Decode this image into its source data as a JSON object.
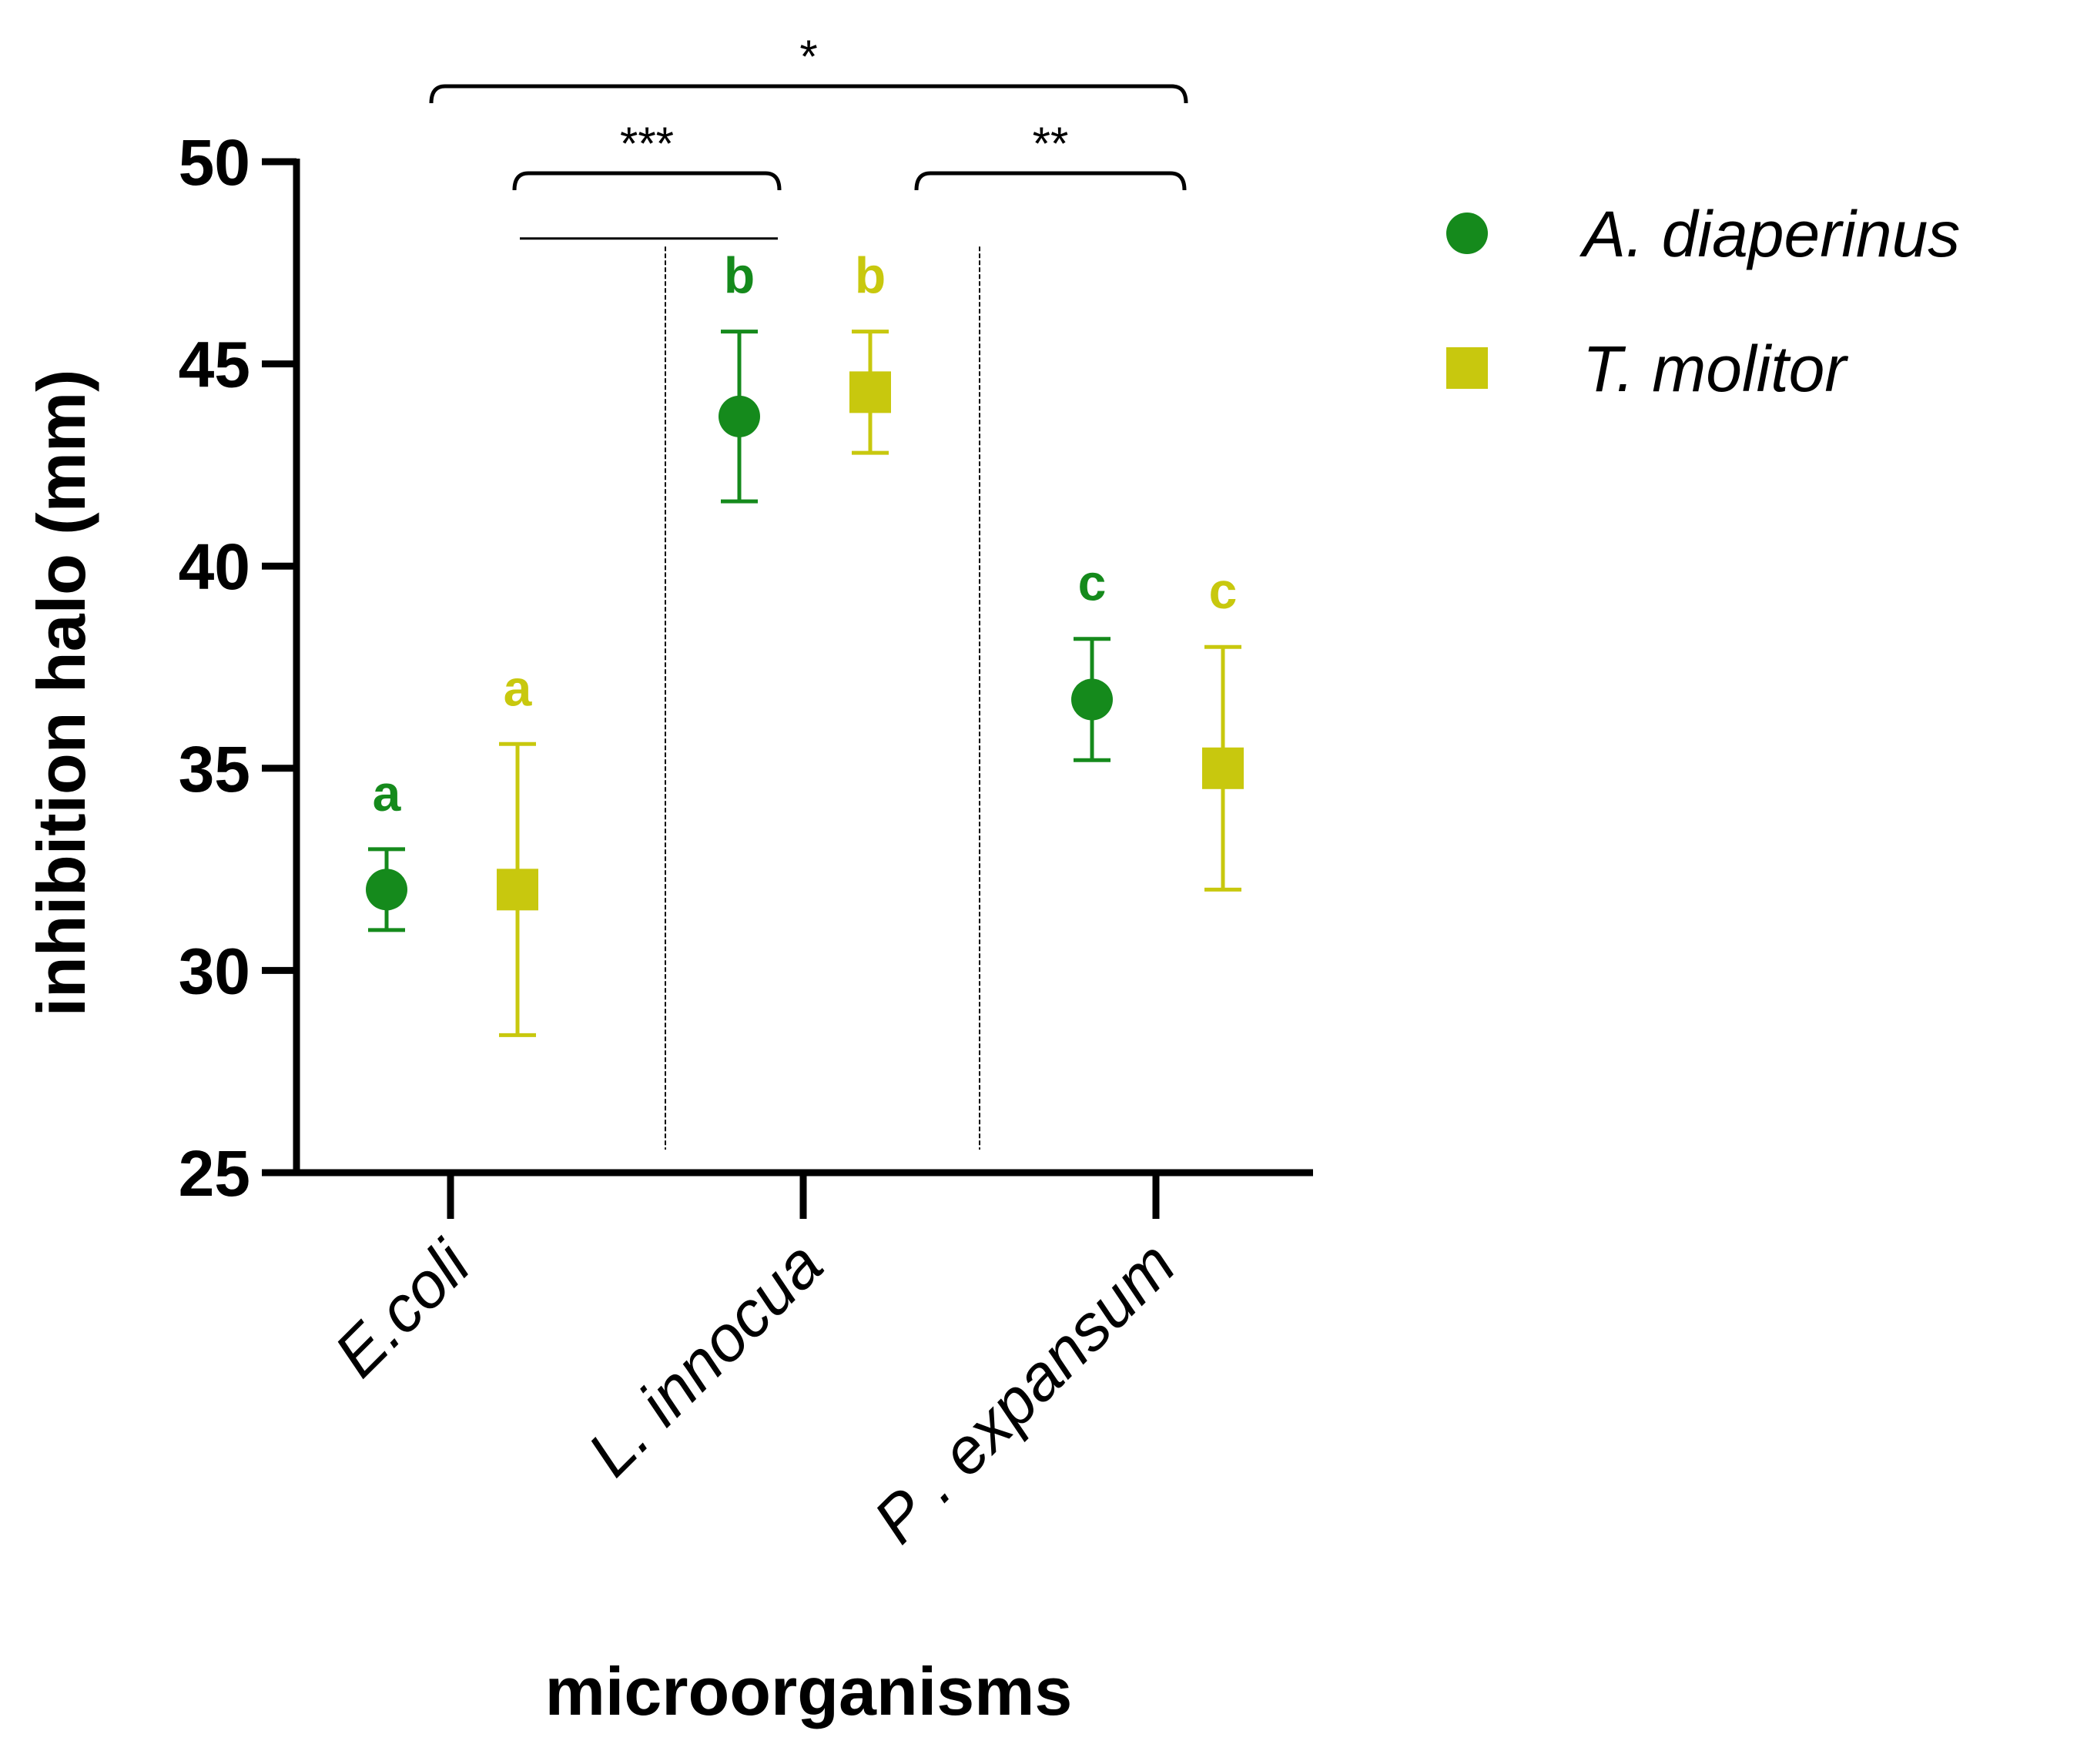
{
  "chart_data": {
    "type": "scatter",
    "title": "",
    "xlabel": "microorganisms",
    "ylabel": "inhibition halo (mm)",
    "ylim": [
      25,
      50
    ],
    "yticks": [
      25,
      30,
      35,
      40,
      45,
      50
    ],
    "grid": false,
    "legend_position": "top-right",
    "categories": [
      "E.coli",
      "L. innocua",
      "P . expansum"
    ],
    "series": [
      {
        "name": "A. diaperinus",
        "color": "#158a1c",
        "marker": "circle",
        "values": [
          32.0,
          43.7,
          36.7
        ],
        "error": [
          1.0,
          2.1,
          1.5
        ],
        "letters": [
          "a",
          "b",
          "c"
        ]
      },
      {
        "name": "T. molitor",
        "color": "#c8c80e",
        "marker": "square",
        "values": [
          32.0,
          44.3,
          35.0
        ],
        "error": [
          3.6,
          1.5,
          3.0
        ],
        "letters": [
          "a",
          "b",
          "c"
        ]
      }
    ],
    "significance": [
      {
        "label": "*",
        "from": "E.coli",
        "to": "P . expansum"
      },
      {
        "label": "***",
        "from": "E.coli",
        "to": "L. innocua"
      },
      {
        "label": "**",
        "from": "L. innocua",
        "to": "P . expansum"
      }
    ]
  }
}
